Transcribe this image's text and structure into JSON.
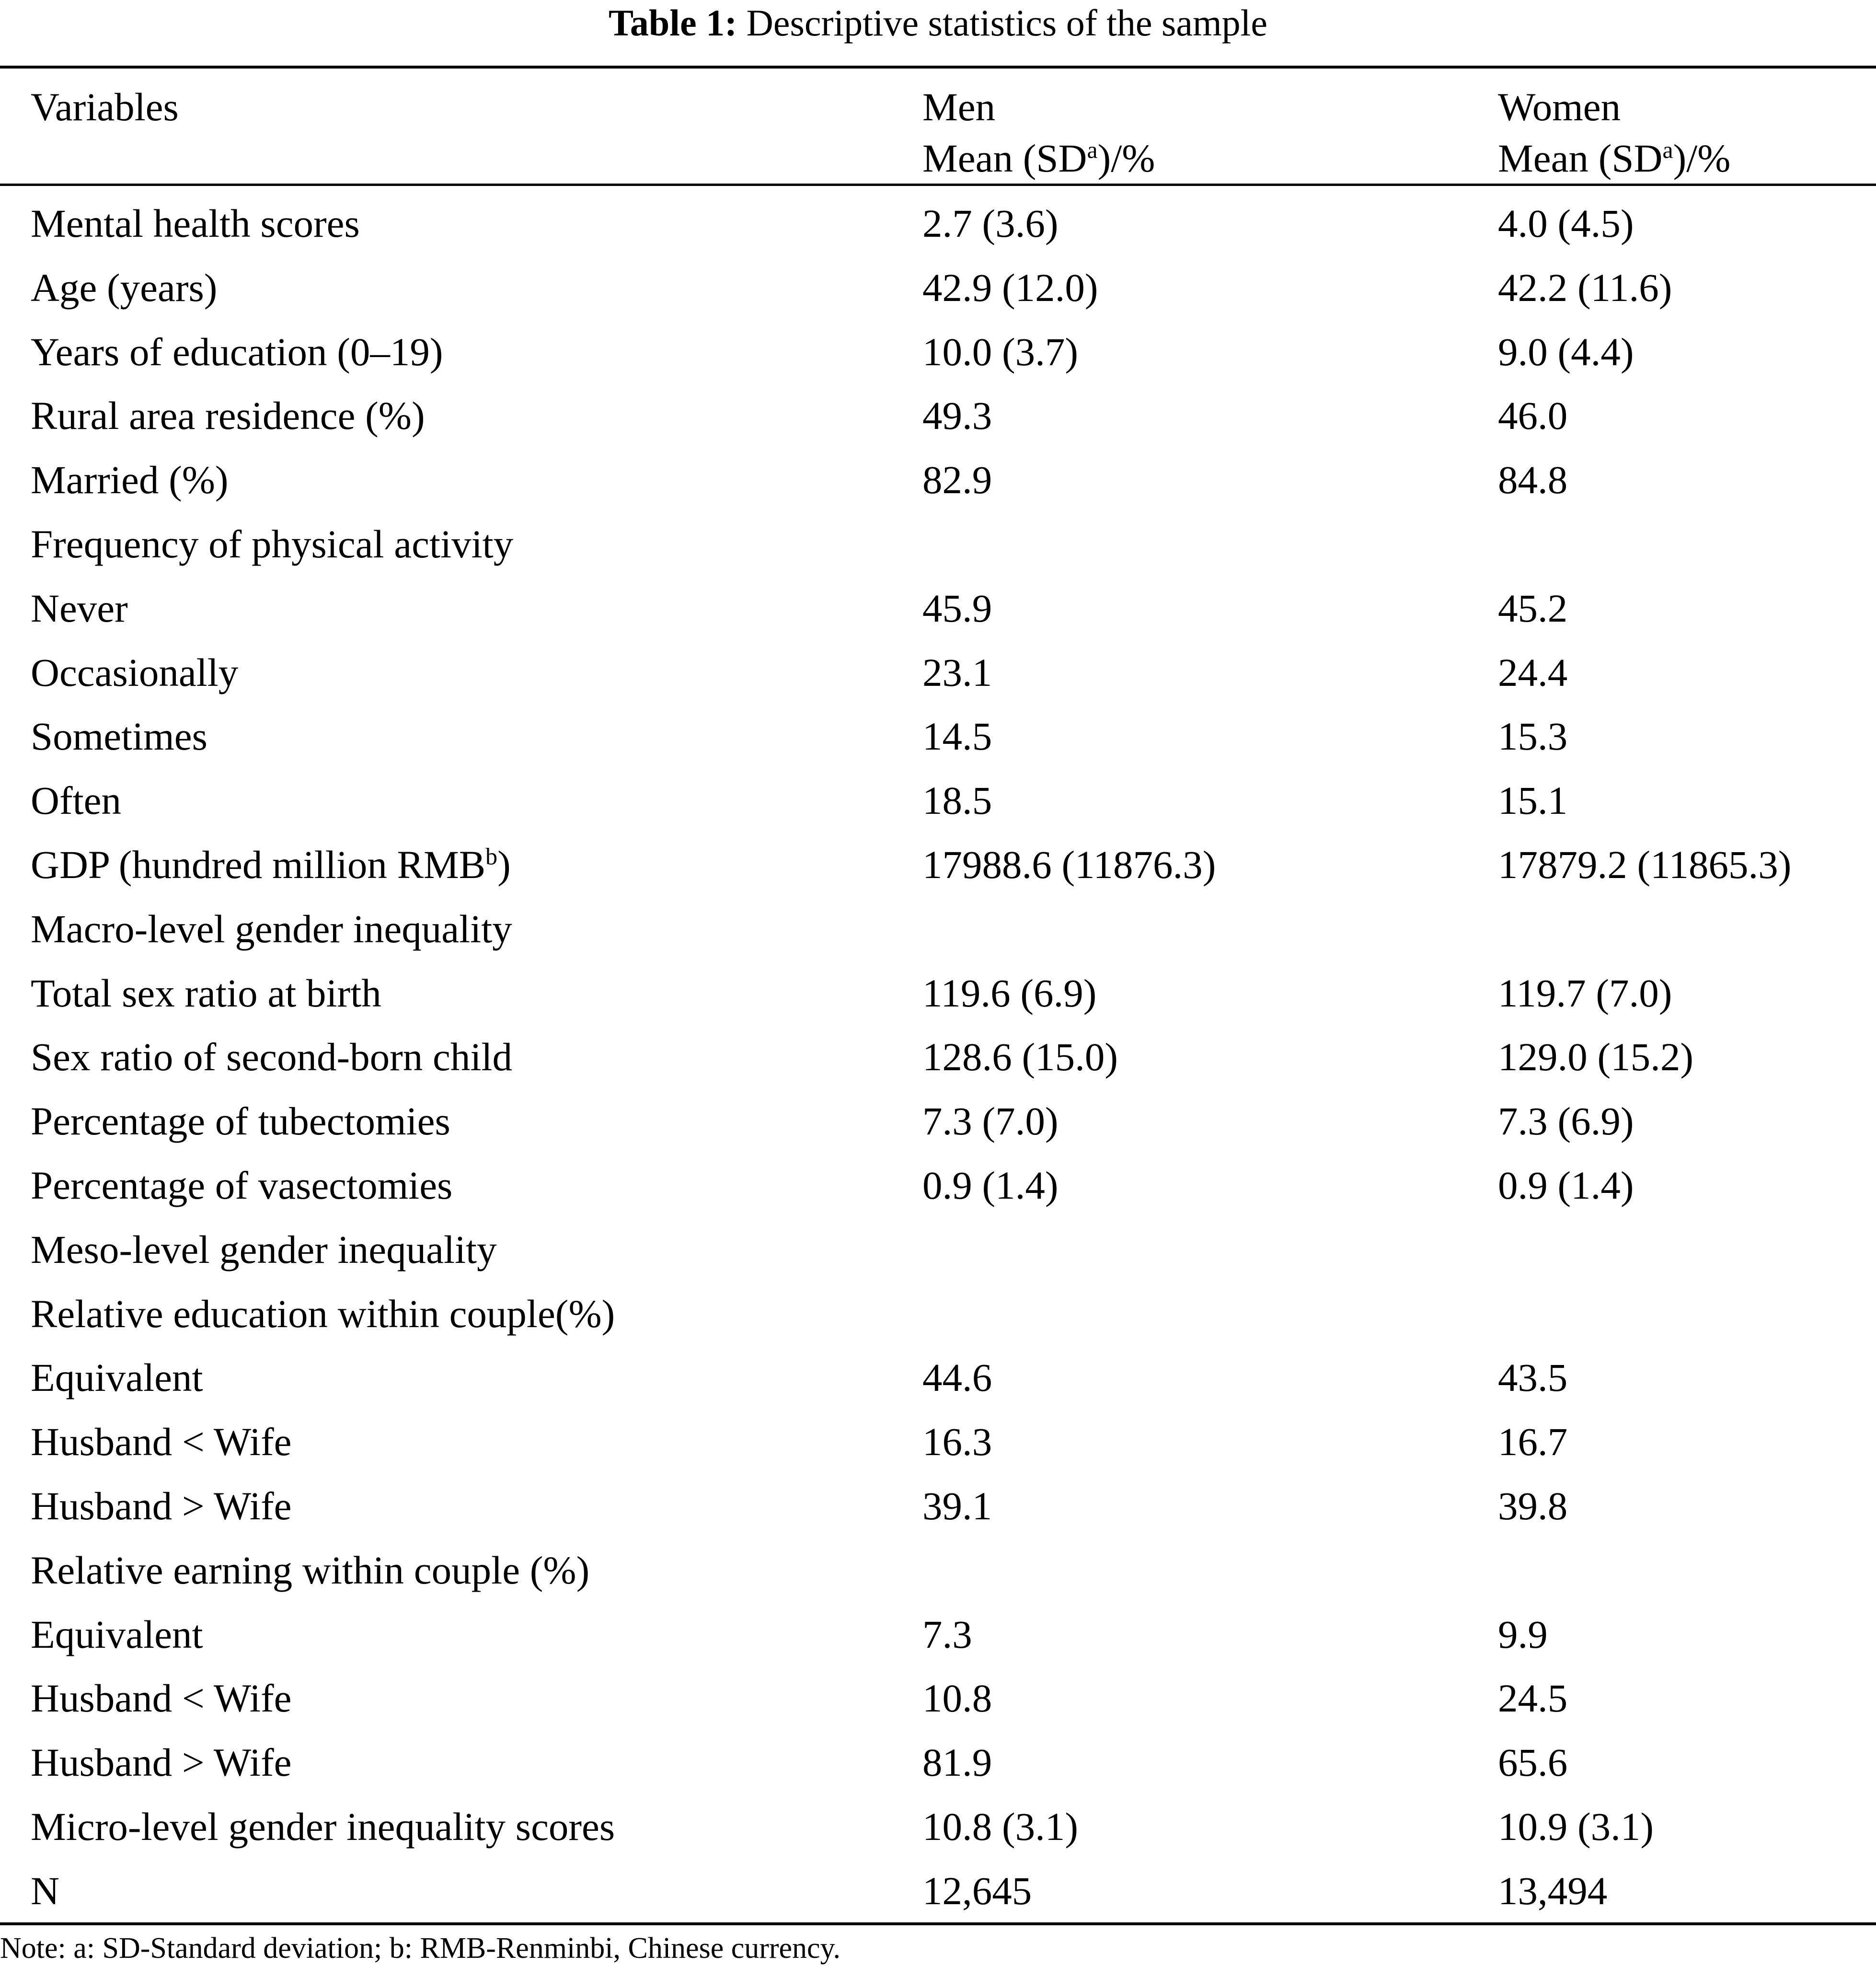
{
  "table": {
    "caption_label": "Table 1:",
    "caption_text": "Descriptive statistics of the sample",
    "columns": {
      "variables": "Variables",
      "men": "Men",
      "women": "Women",
      "stat_prefix": "Mean (SD",
      "stat_sup": "a",
      "stat_suffix": ")/%"
    },
    "rows": [
      {
        "label": "Mental health scores",
        "men": "2.7 (3.6)",
        "women": "4.0 (4.5)"
      },
      {
        "label": "Age (years)",
        "men": "42.9 (12.0)",
        "women": "42.2 (11.6)"
      },
      {
        "label": "Years of education (0–19)",
        "men": "10.0 (3.7)",
        "women": "9.0 (4.4)"
      },
      {
        "label": "Rural area residence (%)",
        "men": "49.3",
        "women": "46.0"
      },
      {
        "label": "Married (%)",
        "men": "82.9",
        "women": "84.8"
      },
      {
        "label": "Frequency of physical activity",
        "men": "",
        "women": ""
      },
      {
        "label": "Never",
        "men": "45.9",
        "women": "45.2"
      },
      {
        "label": "Occasionally",
        "men": "23.1",
        "women": "24.4"
      },
      {
        "label": "Sometimes",
        "men": "14.5",
        "women": "15.3"
      },
      {
        "label": "Often",
        "men": "18.5",
        "women": "15.1"
      },
      {
        "label": "GDP (hundred million RMB",
        "label_sup": "b",
        "label_suffix": ")",
        "men": "17988.6 (11876.3)",
        "women": "17879.2 (11865.3)"
      },
      {
        "label": "Macro-level gender inequality",
        "men": "",
        "women": ""
      },
      {
        "label": "Total sex ratio at birth",
        "men": "119.6 (6.9)",
        "women": "119.7 (7.0)"
      },
      {
        "label": "Sex ratio of second-born child",
        "men": "128.6 (15.0)",
        "women": "129.0 (15.2)"
      },
      {
        "label": "Percentage of tubectomies",
        "men": "7.3 (7.0)",
        "women": "7.3 (6.9)"
      },
      {
        "label": "Percentage of vasectomies",
        "men": "0.9 (1.4)",
        "women": "0.9 (1.4)"
      },
      {
        "label": "Meso-level gender inequality",
        "men": "",
        "women": ""
      },
      {
        "label": "Relative education within couple(%)",
        "men": "",
        "women": ""
      },
      {
        "label": "Equivalent",
        "men": "44.6",
        "women": "43.5"
      },
      {
        "label": "Husband < Wife",
        "men": "16.3",
        "women": "16.7"
      },
      {
        "label": "Husband > Wife",
        "men": "39.1",
        "women": "39.8"
      },
      {
        "label": "Relative earning within couple (%)",
        "men": "",
        "women": ""
      },
      {
        "label": "Equivalent",
        "men": "7.3",
        "women": "9.9"
      },
      {
        "label": "Husband < Wife",
        "men": "10.8",
        "women": "24.5"
      },
      {
        "label": "Husband > Wife",
        "men": "81.9",
        "women": "65.6"
      },
      {
        "label": "Micro-level gender inequality scores",
        "men": "10.8 (3.1)",
        "women": "10.9 (3.1)"
      },
      {
        "label": "N",
        "men": "12,645",
        "women": "13,494"
      }
    ],
    "note": "Note: a: SD-Standard deviation; b: RMB-Renminbi, Chinese currency."
  }
}
